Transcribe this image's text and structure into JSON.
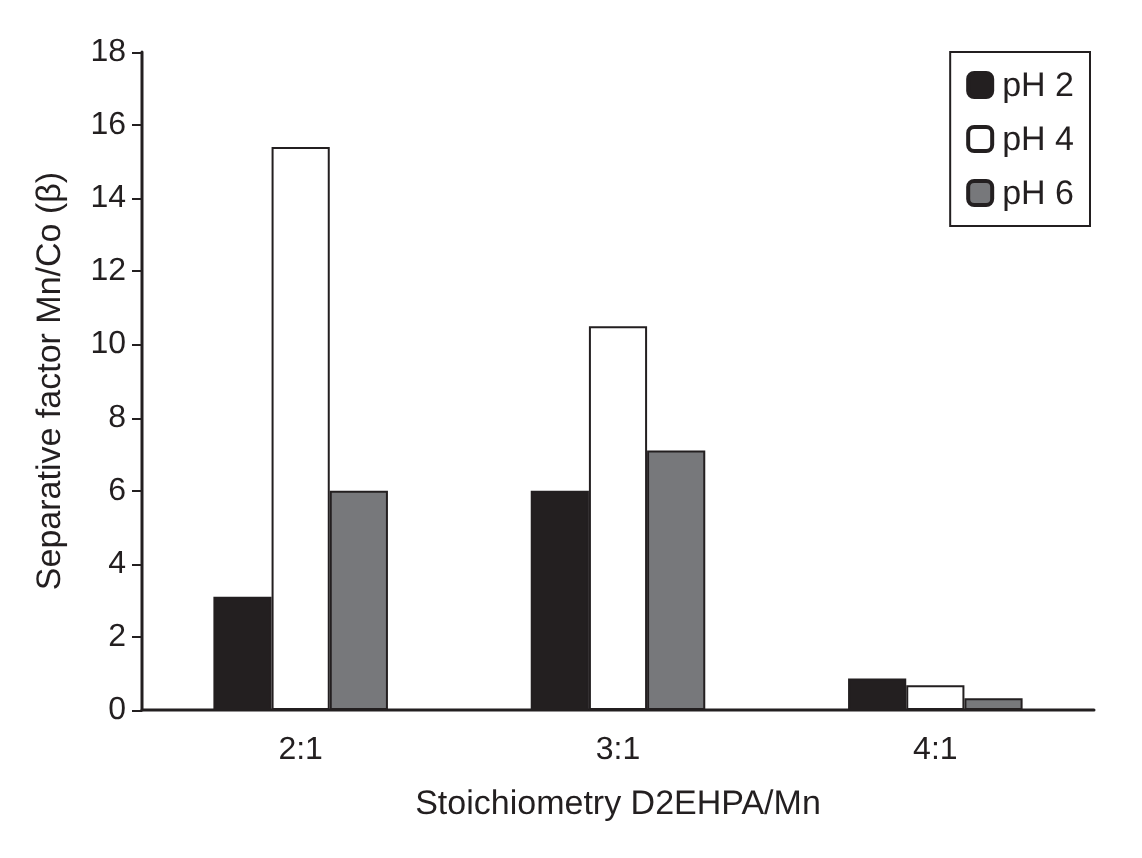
{
  "chart_data": {
    "type": "bar",
    "xlabel": "Stoichiometry D2EHPA/Mn",
    "ylabel": "Separative factor Mn/Co (β)",
    "categories": [
      "2:1",
      "3:1",
      "4:1"
    ],
    "series": [
      {
        "name": "pH 2",
        "color": "#231f20",
        "values": [
          3.1,
          6.0,
          0.86
        ]
      },
      {
        "name": "pH 4",
        "color": "#ffffff",
        "values": [
          15.4,
          10.5,
          0.68
        ]
      },
      {
        "name": "pH 6",
        "color": "#77787b",
        "values": [
          6.0,
          7.1,
          0.32
        ]
      }
    ],
    "ylim": [
      0,
      18
    ],
    "yticks": [
      0,
      2,
      4,
      6,
      8,
      10,
      12,
      14,
      16,
      18
    ],
    "grid": false,
    "legend": "top right"
  }
}
